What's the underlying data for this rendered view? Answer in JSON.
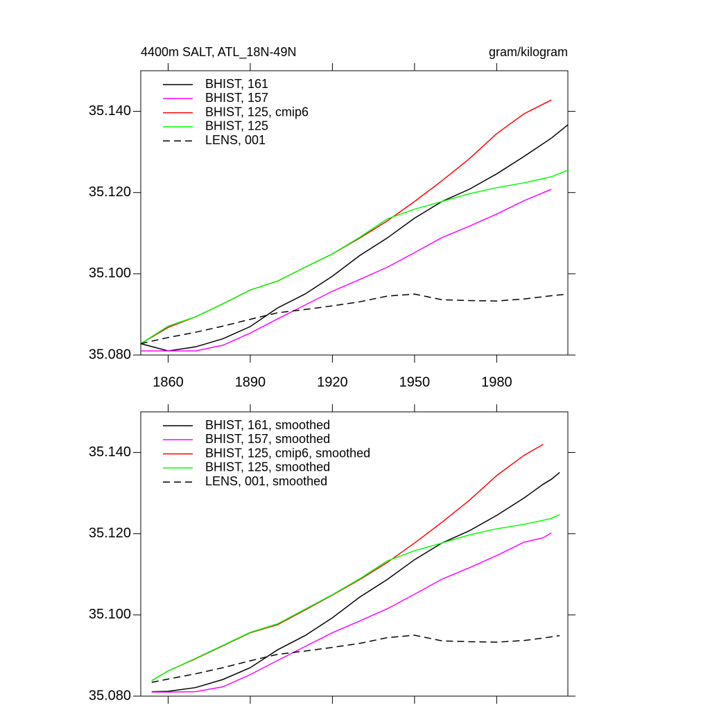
{
  "chart_data": [
    {
      "type": "line",
      "title": "4400m SALT, ATL_18N-49N",
      "units": "gram/kilogram",
      "x": [
        1850,
        1860,
        1870,
        1880,
        1890,
        1900,
        1910,
        1920,
        1930,
        1940,
        1950,
        1960,
        1970,
        1980,
        1990,
        2000,
        2006
      ],
      "xlim": [
        1850,
        2006
      ],
      "xticks": [
        1860,
        1890,
        1920,
        1950,
        1980
      ],
      "show_xtick_labels": true,
      "ylim": [
        35.08,
        35.15
      ],
      "yticks": [
        {
          "value": 35.08,
          "label": "35.080"
        },
        {
          "value": 35.1,
          "label": "35.100"
        },
        {
          "value": 35.12,
          "label": "35.120"
        },
        {
          "value": 35.14,
          "label": "35.140"
        }
      ],
      "series": [
        {
          "name": "BHIST, 161",
          "color": "#000000",
          "dash": false,
          "values": [
            35.0828,
            35.081,
            35.082,
            35.084,
            35.087,
            35.0916,
            35.095,
            35.0994,
            35.1045,
            35.1088,
            35.1137,
            35.1178,
            35.1208,
            35.1246,
            35.1289,
            35.1334,
            35.1367
          ]
        },
        {
          "name": "BHIST, 157",
          "color": "#ff00ff",
          "dash": false,
          "values": [
            35.081,
            35.081,
            35.081,
            35.0824,
            35.0854,
            35.0889,
            35.0923,
            35.0957,
            35.0986,
            35.1016,
            35.1052,
            35.1089,
            35.1117,
            35.1147,
            35.118,
            35.1208,
            null
          ]
        },
        {
          "name": "BHIST, 125, cmip6",
          "color": "#ff0000",
          "dash": false,
          "values": [
            35.0828,
            35.0868,
            35.0894,
            35.0926,
            35.096,
            35.0982,
            35.1016,
            35.1049,
            35.1088,
            35.113,
            35.1178,
            35.1229,
            35.1283,
            35.1345,
            35.1394,
            35.1428,
            null
          ]
        },
        {
          "name": "BHIST, 125",
          "color": "#00ff00",
          "dash": false,
          "values": [
            35.0828,
            35.0871,
            35.0894,
            35.0926,
            35.096,
            35.0982,
            35.1016,
            35.1049,
            35.109,
            35.1135,
            35.1159,
            35.1178,
            35.1197,
            35.1212,
            35.1224,
            35.1239,
            35.1255
          ]
        },
        {
          "name": "LENS, 001",
          "color": "#000000",
          "dash": true,
          "values": [
            35.0828,
            35.0843,
            35.0856,
            35.0871,
            35.0888,
            35.0904,
            35.0912,
            35.0921,
            35.0931,
            35.0945,
            35.095,
            35.0936,
            35.0934,
            35.0933,
            35.0938,
            35.0946,
            35.095
          ]
        }
      ]
    },
    {
      "type": "line",
      "x": [
        1854,
        1860,
        1870,
        1880,
        1890,
        1900,
        1910,
        1920,
        1930,
        1940,
        1950,
        1960,
        1970,
        1980,
        1990,
        1997,
        2000,
        2003
      ],
      "xlim": [
        1850,
        2006
      ],
      "xticks": [
        1860,
        1890,
        1920,
        1950,
        1980
      ],
      "show_xtick_labels": false,
      "ylim": [
        35.08,
        35.15
      ],
      "yticks": [
        {
          "value": 35.08,
          "label": "35.080"
        },
        {
          "value": 35.1,
          "label": "35.100"
        },
        {
          "value": 35.12,
          "label": "35.120"
        },
        {
          "value": 35.14,
          "label": "35.140"
        }
      ],
      "series": [
        {
          "name": "BHIST, 161, smoothed",
          "color": "#000000",
          "dash": false,
          "values": [
            35.0811,
            35.0812,
            35.0821,
            35.0841,
            35.087,
            35.0914,
            35.0949,
            35.0993,
            35.1044,
            35.1087,
            35.1136,
            35.1177,
            35.1207,
            35.1245,
            35.1288,
            35.1322,
            35.1334,
            35.1351
          ]
        },
        {
          "name": "BHIST, 157, smoothed",
          "color": "#ff00ff",
          "dash": false,
          "values": [
            35.081,
            35.081,
            35.0811,
            35.0823,
            35.0853,
            35.0888,
            35.0922,
            35.0956,
            35.0985,
            35.1015,
            35.1051,
            35.1088,
            35.1116,
            35.1146,
            35.1179,
            35.119,
            35.1202,
            null
          ]
        },
        {
          "name": "BHIST, 125, cmip6, smoothed",
          "color": "#ff0000",
          "dash": false,
          "values": [
            35.0838,
            35.0862,
            35.0892,
            35.0924,
            35.0956,
            35.0976,
            35.1012,
            35.1049,
            35.1087,
            35.1129,
            35.1177,
            35.1228,
            35.1282,
            35.1343,
            35.1393,
            35.142,
            null,
            null
          ]
        },
        {
          "name": "BHIST, 125, smoothed",
          "color": "#00ff00",
          "dash": false,
          "values": [
            35.0838,
            35.0862,
            35.0893,
            35.0925,
            35.0957,
            35.0978,
            35.1014,
            35.105,
            35.1089,
            35.1133,
            35.1158,
            35.1177,
            35.1197,
            35.1212,
            35.1223,
            35.1233,
            35.1238,
            35.1247
          ]
        },
        {
          "name": "LENS, 001, smoothed",
          "color": "#000000",
          "dash": true,
          "values": [
            35.0834,
            35.0842,
            35.0855,
            35.087,
            35.0887,
            35.0903,
            35.0911,
            35.092,
            35.093,
            35.0944,
            35.095,
            35.0936,
            35.0934,
            35.0933,
            35.0937,
            35.0943,
            35.0946,
            35.0949
          ]
        }
      ]
    }
  ]
}
